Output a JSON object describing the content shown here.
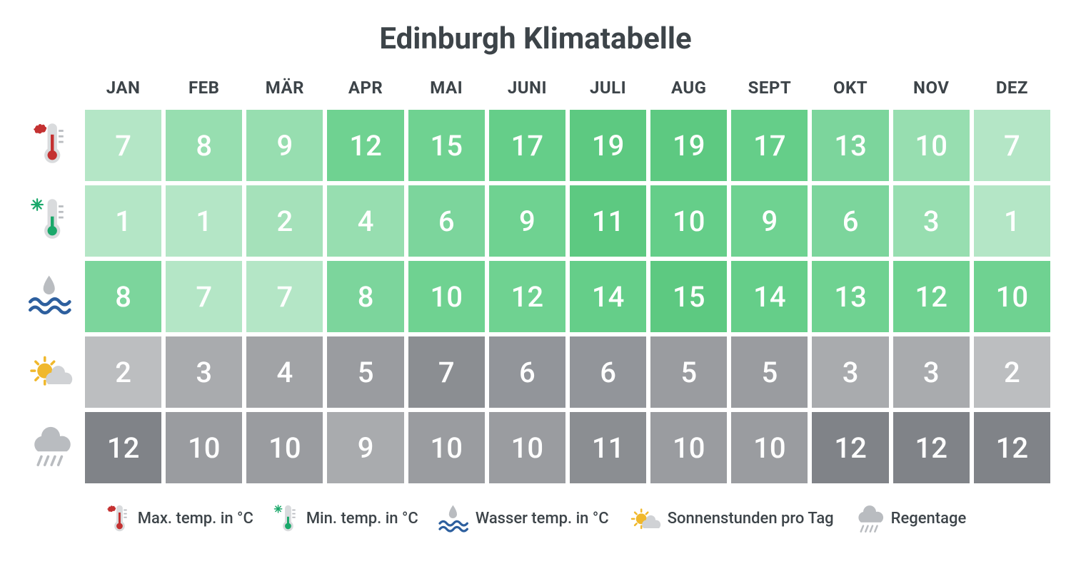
{
  "title": "Edinburgh Klimatabelle",
  "chart": {
    "type": "table",
    "months": [
      "JAN",
      "FEB",
      "MÄR",
      "APR",
      "MAI",
      "JUNI",
      "JULI",
      "AUG",
      "SEPT",
      "OKT",
      "NOV",
      "DEZ"
    ],
    "cell_font_color": "#ffffff",
    "header_font_color": "#3d4449",
    "rows": [
      {
        "icon": "max-temp-icon",
        "values": [
          7,
          8,
          9,
          12,
          15,
          17,
          19,
          19,
          17,
          13,
          10,
          7
        ],
        "colors": [
          "#b4e6c6",
          "#97deb0",
          "#97deb0",
          "#6fd291",
          "#6fd291",
          "#65ce89",
          "#5dc981",
          "#5dc981",
          "#65ce89",
          "#7cd59c",
          "#97deb0",
          "#b4e6c6"
        ]
      },
      {
        "icon": "min-temp-icon",
        "values": [
          1,
          1,
          2,
          4,
          6,
          9,
          11,
          10,
          9,
          6,
          3,
          1
        ],
        "colors": [
          "#b4e6c6",
          "#b4e6c6",
          "#a5e1ba",
          "#97deb0",
          "#7cd59c",
          "#6fd291",
          "#5dc981",
          "#65ce89",
          "#6fd291",
          "#7cd59c",
          "#97deb0",
          "#b4e6c6"
        ]
      },
      {
        "icon": "water-temp-icon",
        "values": [
          8,
          7,
          7,
          8,
          10,
          12,
          14,
          15,
          14,
          13,
          12,
          10
        ],
        "colors": [
          "#7cd59c",
          "#b4e6c6",
          "#b4e6c6",
          "#7cd59c",
          "#6fd291",
          "#6fd291",
          "#65ce89",
          "#5dc981",
          "#65ce89",
          "#6fd291",
          "#6fd291",
          "#6fd291"
        ]
      },
      {
        "icon": "sun-icon",
        "values": [
          2,
          3,
          4,
          5,
          7,
          6,
          6,
          5,
          5,
          3,
          3,
          2
        ],
        "colors": [
          "#bcbec0",
          "#a9abae",
          "#a1a3a6",
          "#9a9ca0",
          "#8b8e92",
          "#92959a",
          "#92959a",
          "#9a9ca0",
          "#9a9ca0",
          "#a9abae",
          "#a9abae",
          "#bcbec0"
        ]
      },
      {
        "icon": "rain-icon",
        "values": [
          12,
          10,
          10,
          9,
          10,
          10,
          11,
          10,
          10,
          12,
          12,
          12
        ],
        "colors": [
          "#808388",
          "#9a9ca0",
          "#9a9ca0",
          "#a9abae",
          "#9a9ca0",
          "#9a9ca0",
          "#8b8e92",
          "#9a9ca0",
          "#9a9ca0",
          "#808388",
          "#808388",
          "#808388"
        ]
      }
    ]
  },
  "legend": {
    "items": [
      {
        "icon": "max-temp-icon",
        "label": "Max. temp. in °C"
      },
      {
        "icon": "min-temp-icon",
        "label": "Min. temp. in °C"
      },
      {
        "icon": "water-temp-icon",
        "label": "Wasser temp. in °C"
      },
      {
        "icon": "sun-icon",
        "label": "Sonnenstunden pro Tag"
      },
      {
        "icon": "rain-icon",
        "label": "Regentage"
      }
    ]
  }
}
